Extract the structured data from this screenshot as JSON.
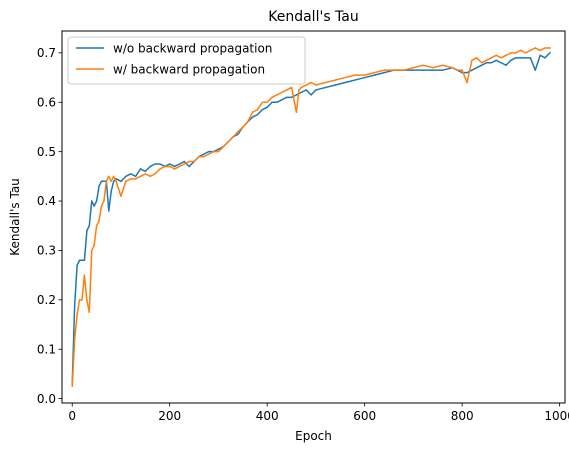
{
  "chart_data": {
    "type": "line",
    "title": "Kendall's Tau",
    "xlabel": "Epoch",
    "ylabel": "Kendall's Tau",
    "xlim": [
      -21,
      1011
    ],
    "ylim": [
      -0.0089,
      0.7443
    ],
    "xticks": [
      0,
      200,
      400,
      600,
      800,
      1000
    ],
    "xtick_labels": [
      "0",
      "200",
      "400",
      "600",
      "800",
      "1000"
    ],
    "yticks": [
      0.0,
      0.1,
      0.2,
      0.3,
      0.4,
      0.5,
      0.6,
      0.7
    ],
    "ytick_labels": [
      "0.0",
      "0.1",
      "0.2",
      "0.3",
      "0.4",
      "0.5",
      "0.6",
      "0.7"
    ],
    "grid": false,
    "legend_position": "top-left",
    "series": [
      {
        "name": "w/o backward propagation",
        "color": "#1f77b4",
        "x": [
          0,
          5,
          10,
          15,
          20,
          25,
          30,
          35,
          40,
          45,
          50,
          55,
          60,
          65,
          70,
          75,
          80,
          85,
          90,
          100,
          110,
          120,
          130,
          140,
          150,
          160,
          170,
          180,
          190,
          200,
          210,
          220,
          230,
          240,
          250,
          260,
          270,
          280,
          290,
          300,
          310,
          320,
          330,
          340,
          350,
          360,
          370,
          380,
          390,
          400,
          410,
          420,
          430,
          440,
          450,
          460,
          470,
          480,
          490,
          500,
          520,
          540,
          560,
          580,
          600,
          620,
          640,
          660,
          680,
          700,
          720,
          740,
          760,
          780,
          790,
          800,
          810,
          820,
          830,
          840,
          850,
          860,
          870,
          880,
          890,
          900,
          910,
          920,
          930,
          940,
          950,
          960,
          970,
          980
        ],
        "y": [
          0.03,
          0.19,
          0.27,
          0.28,
          0.28,
          0.28,
          0.34,
          0.35,
          0.4,
          0.39,
          0.4,
          0.43,
          0.44,
          0.44,
          0.44,
          0.38,
          0.42,
          0.44,
          0.445,
          0.44,
          0.45,
          0.455,
          0.45,
          0.465,
          0.46,
          0.47,
          0.475,
          0.475,
          0.47,
          0.475,
          0.47,
          0.475,
          0.48,
          0.47,
          0.48,
          0.49,
          0.495,
          0.5,
          0.5,
          0.505,
          0.51,
          0.52,
          0.53,
          0.535,
          0.55,
          0.56,
          0.57,
          0.575,
          0.585,
          0.59,
          0.6,
          0.6,
          0.605,
          0.61,
          0.61,
          0.615,
          0.62,
          0.625,
          0.615,
          0.625,
          0.63,
          0.635,
          0.64,
          0.645,
          0.65,
          0.655,
          0.66,
          0.665,
          0.665,
          0.665,
          0.665,
          0.665,
          0.665,
          0.67,
          0.665,
          0.66,
          0.66,
          0.665,
          0.67,
          0.675,
          0.68,
          0.68,
          0.685,
          0.68,
          0.675,
          0.685,
          0.69,
          0.69,
          0.69,
          0.69,
          0.665,
          0.695,
          0.69,
          0.7
        ]
      },
      {
        "name": "w/ backward propagation",
        "color": "#ff7f0e",
        "x": [
          0,
          5,
          10,
          15,
          20,
          25,
          30,
          35,
          40,
          45,
          50,
          55,
          60,
          65,
          70,
          75,
          80,
          85,
          90,
          100,
          110,
          120,
          130,
          140,
          150,
          160,
          170,
          180,
          190,
          200,
          210,
          220,
          230,
          240,
          250,
          260,
          270,
          280,
          290,
          300,
          310,
          320,
          330,
          340,
          350,
          360,
          370,
          380,
          390,
          400,
          410,
          420,
          430,
          440,
          450,
          460,
          465,
          470,
          480,
          490,
          500,
          520,
          540,
          560,
          580,
          600,
          620,
          640,
          660,
          680,
          700,
          720,
          740,
          760,
          780,
          790,
          800,
          810,
          820,
          830,
          840,
          850,
          860,
          870,
          880,
          890,
          900,
          910,
          920,
          930,
          940,
          950,
          960,
          970,
          980
        ],
        "y": [
          0.025,
          0.12,
          0.17,
          0.2,
          0.2,
          0.25,
          0.2,
          0.175,
          0.3,
          0.31,
          0.35,
          0.36,
          0.39,
          0.4,
          0.44,
          0.45,
          0.44,
          0.45,
          0.44,
          0.41,
          0.44,
          0.445,
          0.445,
          0.45,
          0.455,
          0.45,
          0.455,
          0.465,
          0.47,
          0.47,
          0.465,
          0.47,
          0.475,
          0.48,
          0.48,
          0.49,
          0.49,
          0.495,
          0.5,
          0.5,
          0.51,
          0.52,
          0.53,
          0.54,
          0.55,
          0.56,
          0.58,
          0.585,
          0.6,
          0.6,
          0.61,
          0.615,
          0.62,
          0.625,
          0.63,
          0.58,
          0.625,
          0.63,
          0.635,
          0.64,
          0.635,
          0.64,
          0.645,
          0.65,
          0.655,
          0.655,
          0.66,
          0.665,
          0.665,
          0.665,
          0.67,
          0.675,
          0.67,
          0.675,
          0.67,
          0.665,
          0.665,
          0.64,
          0.685,
          0.69,
          0.68,
          0.685,
          0.69,
          0.695,
          0.69,
          0.695,
          0.7,
          0.7,
          0.705,
          0.7,
          0.705,
          0.71,
          0.705,
          0.71,
          0.71
        ]
      }
    ]
  }
}
